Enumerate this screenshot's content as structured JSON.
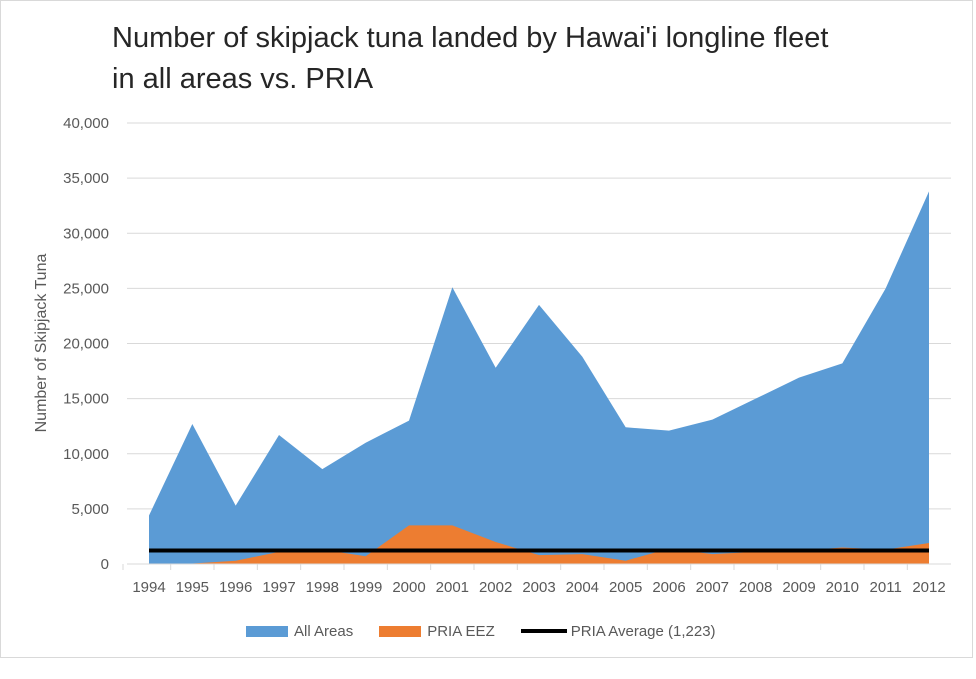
{
  "chart_data": {
    "type": "area",
    "title_line1": "Number of skipjack tuna landed by Hawai'i longline fleet",
    "title_line2": "in all areas vs. PRIA",
    "ylabel": "Number of Skipjack Tuna",
    "xlabel": "",
    "ylim": [
      0,
      40000
    ],
    "yticks": [
      0,
      5000,
      10000,
      15000,
      20000,
      25000,
      30000,
      35000,
      40000
    ],
    "ytick_labels": [
      "0",
      "5,000",
      "10,000",
      "15,000",
      "20,000",
      "25,000",
      "30,000",
      "35,000",
      "40,000"
    ],
    "categories": [
      "1994",
      "1995",
      "1996",
      "1997",
      "1998",
      "1999",
      "2000",
      "2001",
      "2002",
      "2003",
      "2004",
      "2005",
      "2006",
      "2007",
      "2008",
      "2009",
      "2010",
      "2011",
      "2012"
    ],
    "series": [
      {
        "name": "All Areas",
        "color": "#5b9bd5",
        "values": [
          4400,
          12700,
          5300,
          11700,
          8600,
          11000,
          13000,
          25100,
          17800,
          23500,
          18800,
          12400,
          12100,
          13100,
          15000,
          16900,
          18200,
          25000,
          33800
        ]
      },
      {
        "name": "PRIA EEZ",
        "color": "#ed7d31",
        "values": [
          0,
          50,
          300,
          1100,
          1300,
          700,
          3500,
          3500,
          2000,
          800,
          900,
          300,
          1400,
          900,
          1100,
          1200,
          1500,
          1300,
          1900
        ]
      }
    ],
    "reference_line": {
      "name": "PRIA Average (1,223)",
      "value": 1223,
      "color": "#000000"
    },
    "legend_position": "bottom",
    "grid": true
  }
}
